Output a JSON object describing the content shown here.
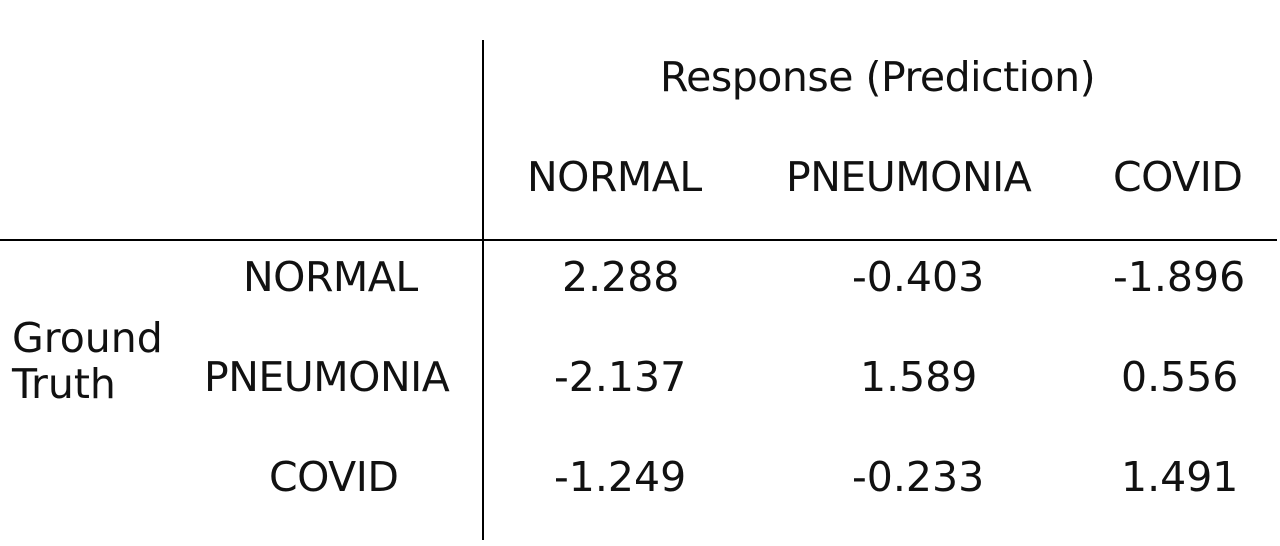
{
  "chart_data": {
    "type": "table",
    "column_group_label": "Response (Prediction)",
    "row_group_label": "Ground Truth",
    "columns": [
      "NORMAL",
      "PNEUMONIA",
      "COVID"
    ],
    "rows": [
      {
        "label": "NORMAL",
        "values": [
          "2.288",
          "-0.403",
          "-1.896"
        ]
      },
      {
        "label": "PNEUMONIA",
        "values": [
          "-2.137",
          "1.589",
          "0.556"
        ]
      },
      {
        "label": "COVID",
        "values": [
          "-1.249",
          "-0.233",
          "1.491"
        ]
      }
    ]
  },
  "colors": {
    "text": "#111111",
    "rule": "#000000",
    "background": "#ffffff"
  }
}
